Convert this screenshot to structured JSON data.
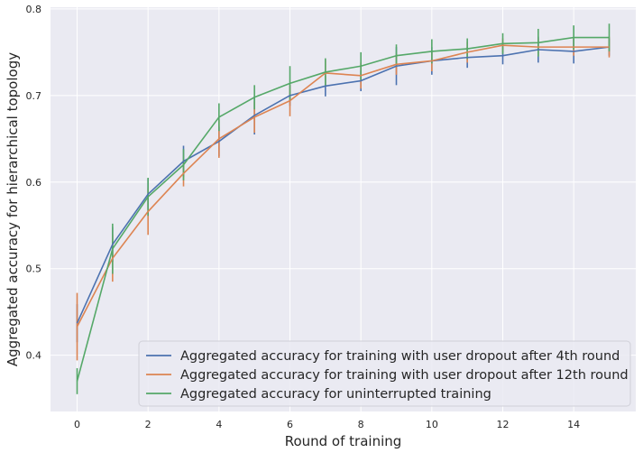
{
  "chart_data": {
    "type": "line",
    "title": "",
    "xlabel": "Round of training",
    "ylabel": "Aggregated accuracy for hierarchical topology",
    "xlim": [
      -0.75,
      15.75
    ],
    "ylim": [
      0.335,
      0.802
    ],
    "xticks": [
      0,
      2,
      4,
      6,
      8,
      10,
      12,
      14
    ],
    "xtick_labels": [
      "0",
      "2",
      "4",
      "6",
      "8",
      "10",
      "12",
      "14"
    ],
    "yticks": [
      0.4,
      0.5,
      0.6,
      0.7,
      0.8
    ],
    "ytick_labels": [
      "0.4",
      "0.5",
      "0.6",
      "0.7",
      "0.8"
    ],
    "grid": true,
    "legend_position": "lower-right",
    "x": [
      0,
      1,
      2,
      3,
      4,
      5,
      6,
      7,
      8,
      9,
      10,
      11,
      12,
      13,
      14,
      15
    ],
    "series": [
      {
        "name": "Aggregated accuracy for training with user dropout after 4th round",
        "color": "#4c72b0",
        "values": [
          0.437,
          0.528,
          0.586,
          0.624,
          0.647,
          0.677,
          0.7,
          0.711,
          0.717,
          0.734,
          0.74,
          0.744,
          0.746,
          0.753,
          0.751,
          0.756
        ],
        "errors": [
          0.022,
          0.02,
          0.018,
          0.018,
          0.017,
          0.022,
          0.012,
          0.012,
          0.012,
          0.022,
          0.016,
          0.012,
          0.01,
          0.015,
          0.014,
          0.01
        ]
      },
      {
        "name": "Aggregated accuracy for training with user dropout after 12th round",
        "color": "#dd8452",
        "values": [
          0.433,
          0.512,
          0.566,
          0.61,
          0.65,
          0.675,
          0.694,
          0.726,
          0.723,
          0.736,
          0.74,
          0.75,
          0.758,
          0.756,
          0.756,
          0.756
        ],
        "errors": [
          0.039,
          0.027,
          0.027,
          0.015,
          0.022,
          0.018,
          0.018,
          0.015,
          0.015,
          0.012,
          0.012,
          0.012,
          0.008,
          0.01,
          0.01,
          0.012
        ]
      },
      {
        "name": "Aggregated accuracy for uninterrupted training",
        "color": "#55a868",
        "values": [
          0.37,
          0.523,
          0.583,
          0.62,
          0.675,
          0.698,
          0.714,
          0.727,
          0.734,
          0.746,
          0.751,
          0.754,
          0.76,
          0.761,
          0.767,
          0.767
        ],
        "errors": [
          0.015,
          0.029,
          0.022,
          0.018,
          0.016,
          0.014,
          0.02,
          0.016,
          0.016,
          0.013,
          0.014,
          0.012,
          0.012,
          0.016,
          0.014,
          0.016
        ]
      }
    ]
  }
}
